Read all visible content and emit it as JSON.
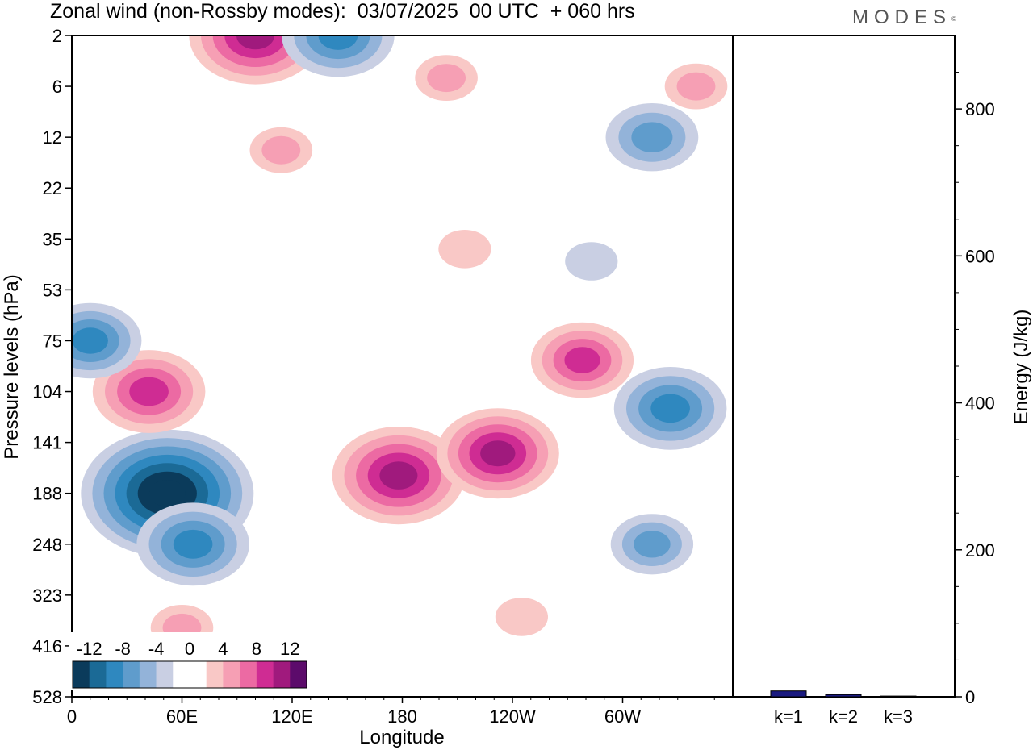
{
  "header": {
    "title": "Zonal wind (non-Rossby modes):  03/07/2025  00 UTC  + 060 hrs",
    "brand": "MODES",
    "brand_mark": "©"
  },
  "chart_data": [
    {
      "type": "heatmap",
      "title": "Zonal wind (non-Rossby modes):  03/07/2025  00 UTC  + 060 hrs",
      "xlabel": "Longitude",
      "ylabel": "Pressure levels (hPa)",
      "x_ticks": [
        "0",
        "60E",
        "120E",
        "180",
        "120W",
        "60W"
      ],
      "x_tick_degrees": [
        0,
        60,
        120,
        180,
        240,
        300
      ],
      "xlim": [
        0,
        360
      ],
      "y_ticks": [
        "2",
        "6",
        "12",
        "22",
        "35",
        "53",
        "75",
        "104",
        "141",
        "188",
        "248",
        "323",
        "416",
        "528"
      ],
      "colorbar": {
        "labels": [
          "-12",
          "-8",
          "-4",
          "0",
          "4",
          "8",
          "12"
        ],
        "levels": [
          -14,
          -12,
          -10,
          -8,
          -6,
          -4,
          -2,
          0,
          2,
          4,
          6,
          8,
          10,
          12,
          14
        ],
        "colors": [
          "#0b3b5b",
          "#1b6a96",
          "#2f88bf",
          "#5f9ccc",
          "#93b3d9",
          "#c9cfe3",
          "#ffffff",
          "#ffffff",
          "#f9c8c6",
          "#f69fb4",
          "#ec6aa3",
          "#cf2c93",
          "#a01a7d",
          "#5c0b6b"
        ]
      },
      "features": [
        {
          "lon": 52,
          "level": "188",
          "value": -15
        },
        {
          "lon": 66,
          "level": "248",
          "value": -9
        },
        {
          "lon": 42,
          "level": "104",
          "value": 9
        },
        {
          "lon": 10,
          "level": "75",
          "value": -8
        },
        {
          "lon": 178,
          "level": "170",
          "value": 11
        },
        {
          "lon": 232,
          "level": "150",
          "value": 10
        },
        {
          "lon": 278,
          "level": "85",
          "value": 8
        },
        {
          "lon": 326,
          "level": "115",
          "value": -9
        },
        {
          "lon": 100,
          "level": "2",
          "value": 11
        },
        {
          "lon": 145,
          "level": "2",
          "value": -9
        },
        {
          "lon": 204,
          "level": "5",
          "value": 4
        },
        {
          "lon": 114,
          "level": "14",
          "value": 4
        },
        {
          "lon": 316,
          "level": "12",
          "value": -7
        },
        {
          "lon": 214,
          "level": "38",
          "value": 3
        },
        {
          "lon": 283,
          "level": "42",
          "value": -3
        },
        {
          "lon": 316,
          "level": "248",
          "value": -6
        },
        {
          "lon": 245,
          "level": "360",
          "value": 3
        },
        {
          "lon": 60,
          "level": "380",
          "value": 4
        },
        {
          "lon": 340,
          "level": "6",
          "value": 4
        }
      ]
    },
    {
      "type": "bar",
      "ylabel": "Energy (J/kg)",
      "categories": [
        "k=1",
        "k=2",
        "k=3"
      ],
      "values": [
        8,
        3,
        1
      ],
      "ylim": [
        0,
        900
      ],
      "y_ticks": [
        "0",
        "200",
        "400",
        "600",
        "800"
      ],
      "y_tick_values": [
        0,
        200,
        400,
        600,
        800
      ],
      "bar_color": "#1a1a80"
    }
  ]
}
